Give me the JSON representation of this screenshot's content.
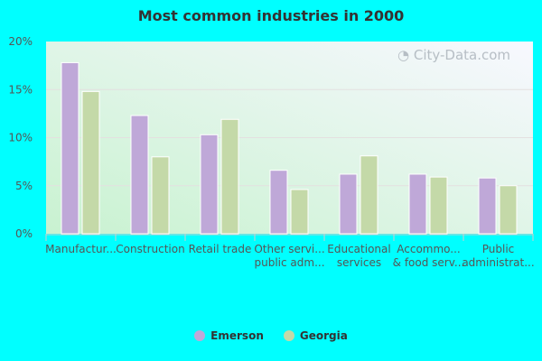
{
  "chart_data": {
    "type": "bar",
    "title": "Most common industries in 2000",
    "categories": [
      [
        "Manufactur..."
      ],
      [
        "Construction"
      ],
      [
        "Retail trade"
      ],
      [
        "Other servi...",
        "public adm..."
      ],
      [
        "Educational",
        "services"
      ],
      [
        "Accommo...",
        "& food serv..."
      ],
      [
        "Public",
        "administrat..."
      ]
    ],
    "series": [
      {
        "name": "Emerson",
        "color": "#bfa8d8",
        "values": [
          17.8,
          12.3,
          10.3,
          6.6,
          6.2,
          6.2,
          5.8
        ]
      },
      {
        "name": "Georgia",
        "color": "#c4d9a8",
        "values": [
          14.8,
          8.0,
          11.9,
          4.6,
          8.1,
          5.9,
          5.0
        ]
      }
    ],
    "ylim": [
      0,
      20
    ],
    "yticks": [
      "0%",
      "5%",
      "10%",
      "15%",
      "20%"
    ],
    "grid": true,
    "legend": "bottom",
    "watermark": "City-Data.com"
  }
}
